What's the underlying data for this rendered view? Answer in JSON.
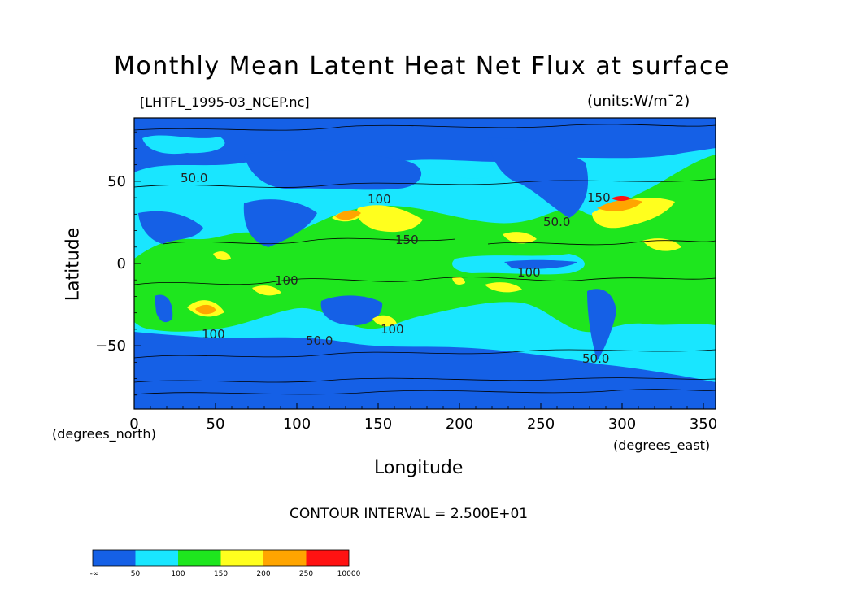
{
  "chart_data": {
    "type": "heatmap",
    "title": "Monthly Mean Latent Heat Net Flux at surface",
    "file_label": "[LHTFL_1995-03_NCEP.nc]",
    "units_label": "(units:W/m¯2)",
    "xlabel": "Longitude",
    "ylabel": "Latitude",
    "x_unit_label": "(degrees_east)",
    "y_unit_label": "(degrees_north)",
    "xlim": [
      0,
      357.5
    ],
    "ylim": [
      -88.5,
      88.5
    ],
    "x_ticks": [
      0,
      50,
      100,
      150,
      200,
      250,
      300,
      350
    ],
    "y_ticks": [
      50,
      0,
      -50
    ],
    "contour_interval_label": "CONTOUR INTERVAL = 2.500E+01",
    "contour_labels": [
      "50.0",
      "100",
      "150",
      "100",
      "100",
      "150",
      "100",
      "100",
      "50.0",
      "50.0",
      "50.0"
    ],
    "colorbar": {
      "levels": [
        "-∞",
        "50",
        "100",
        "150",
        "200",
        "250",
        "10000"
      ],
      "colors": [
        "#1560e6",
        "#19e6ff",
        "#1ee61e",
        "#ffff1e",
        "#ffa500",
        "#ff1212"
      ]
    },
    "grid": false
  }
}
